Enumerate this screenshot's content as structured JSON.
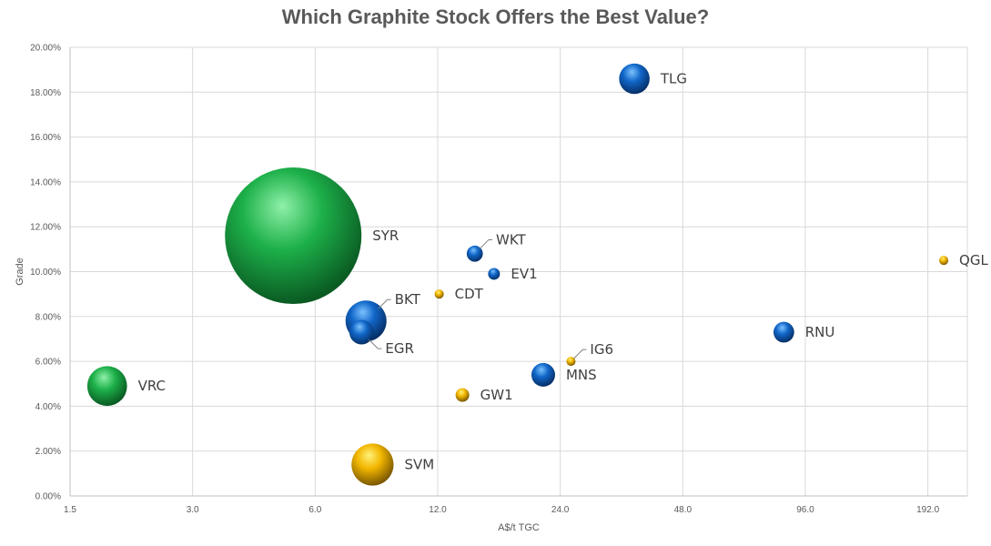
{
  "chart_data": {
    "type": "scatter",
    "title": "Which Graphite Stock Offers the Best Value?",
    "xlabel": "A$/t TGC",
    "ylabel": "Grade",
    "x_scale": "log2",
    "xlim": [
      1.5,
      240
    ],
    "ylim": [
      0,
      20
    ],
    "x_ticks": [
      "1.5",
      "3.0",
      "6.0",
      "12.0",
      "24.0",
      "48.0",
      "96.0",
      "192.0"
    ],
    "y_ticks": [
      "0.00%",
      "2.00%",
      "4.00%",
      "6.00%",
      "8.00%",
      "10.00%",
      "12.00%",
      "14.00%",
      "16.00%",
      "18.00%",
      "20.00%"
    ],
    "grid": true,
    "colors": {
      "green": "#1db04a",
      "blue": "#1166c8",
      "gold": "#f2b600"
    },
    "points": [
      {
        "name": "VRC",
        "x": 1.85,
        "y": 4.9,
        "size": 8.5,
        "color": "green"
      },
      {
        "name": "SYR",
        "x": 5.3,
        "y": 11.6,
        "size": 100,
        "color": "green"
      },
      {
        "name": "BKT",
        "x": 8.0,
        "y": 7.8,
        "size": 9,
        "color": "blue"
      },
      {
        "name": "EGR",
        "x": 7.8,
        "y": 7.3,
        "size": 3.2,
        "color": "blue"
      },
      {
        "name": "SVM",
        "x": 8.3,
        "y": 1.4,
        "size": 9.5,
        "color": "gold"
      },
      {
        "name": "CDT",
        "x": 12.1,
        "y": 9.0,
        "size": 0.45,
        "color": "gold"
      },
      {
        "name": "GW1",
        "x": 13.8,
        "y": 4.5,
        "size": 1.0,
        "color": "gold"
      },
      {
        "name": "WKT",
        "x": 14.8,
        "y": 10.8,
        "size": 1.4,
        "color": "blue"
      },
      {
        "name": "EV1",
        "x": 16.5,
        "y": 9.9,
        "size": 0.75,
        "color": "blue"
      },
      {
        "name": "MNS",
        "x": 21.8,
        "y": 5.4,
        "size": 3.0,
        "color": "blue"
      },
      {
        "name": "IG6",
        "x": 25.5,
        "y": 6.0,
        "size": 0.35,
        "color": "gold"
      },
      {
        "name": "TLG",
        "x": 36.5,
        "y": 18.6,
        "size": 5.0,
        "color": "blue"
      },
      {
        "name": "RNU",
        "x": 85.0,
        "y": 7.3,
        "size": 2.3,
        "color": "blue"
      },
      {
        "name": "QGL",
        "x": 210.0,
        "y": 10.5,
        "size": 0.28,
        "color": "gold"
      }
    ]
  }
}
